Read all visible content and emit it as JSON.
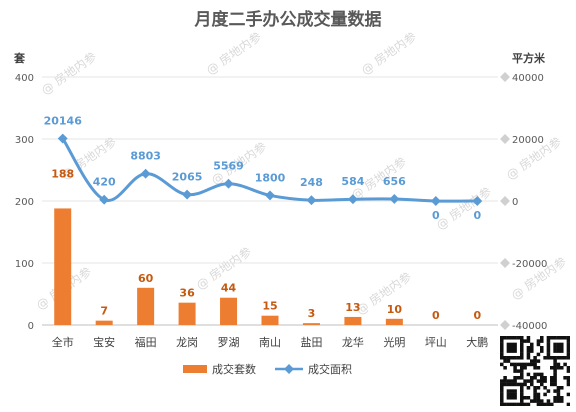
{
  "watermark_text": "@ 房地内参",
  "chart_data": {
    "type": "bar",
    "title": "月度二手办公成交量数据",
    "y_left_unit": "套",
    "y_right_unit": "平方米",
    "categories": [
      "全市",
      "宝安",
      "福田",
      "龙岗",
      "罗湖",
      "南山",
      "盐田",
      "龙华",
      "光明",
      "坪山",
      "大鹏"
    ],
    "ylim_left": [
      0,
      400
    ],
    "yticks_left": [
      0,
      100,
      200,
      300,
      400
    ],
    "ylim_right": [
      -40000,
      40000
    ],
    "yticks_right": [
      -40000,
      -20000,
      0,
      20000,
      40000
    ],
    "series": [
      {
        "name": "成交套数",
        "type": "bar",
        "axis": "left",
        "color": "#ed7d31",
        "values": [
          188,
          7,
          60,
          36,
          44,
          15,
          3,
          13,
          10,
          0,
          0
        ]
      },
      {
        "name": "成交面积",
        "type": "line",
        "axis": "right",
        "color": "#5b9bd5",
        "values": [
          20146,
          420,
          8803,
          2065,
          5569,
          1800,
          248,
          584,
          656,
          0,
          0
        ]
      }
    ],
    "grid": true,
    "legend_position": "bottom"
  }
}
